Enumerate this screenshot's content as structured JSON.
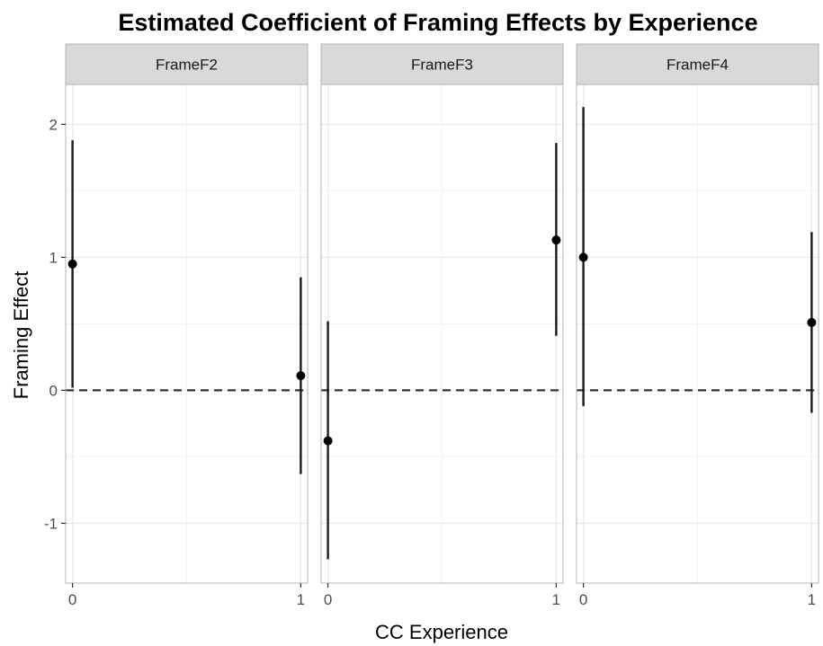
{
  "chart_data": {
    "type": "scatter",
    "subtype": "point-errorbar-facets",
    "title": "Estimated Coefficient of Framing Effects by Experience",
    "xlabel": "CC Experience",
    "ylabel": "Framing Effect",
    "x_ticks": [
      "0",
      "1"
    ],
    "y_ticks": [
      -1,
      0,
      1,
      2
    ],
    "ylim": [
      -1.45,
      2.3
    ],
    "xlim": [
      -0.03,
      1.03
    ],
    "reference_line": {
      "y": 0,
      "style": "dashed"
    },
    "grid": true,
    "legend": "none",
    "colors": {
      "strip_bg": "#d9d9d9",
      "point": "#000000",
      "grid": "#ebebeb",
      "panel_border": "#b3b3b3"
    },
    "facets": [
      {
        "label": "FrameF2",
        "points": [
          {
            "x": 0,
            "y": 0.95,
            "lower": 0.02,
            "upper": 1.88
          },
          {
            "x": 1,
            "y": 0.11,
            "lower": -0.63,
            "upper": 0.85
          }
        ]
      },
      {
        "label": "FrameF3",
        "points": [
          {
            "x": 0,
            "y": -0.38,
            "lower": -1.27,
            "upper": 0.52
          },
          {
            "x": 1,
            "y": 1.13,
            "lower": 0.41,
            "upper": 1.86
          }
        ]
      },
      {
        "label": "FrameF4",
        "points": [
          {
            "x": 0,
            "y": 1.0,
            "lower": -0.12,
            "upper": 2.13
          },
          {
            "x": 1,
            "y": 0.51,
            "lower": -0.17,
            "upper": 1.19
          }
        ]
      }
    ]
  }
}
